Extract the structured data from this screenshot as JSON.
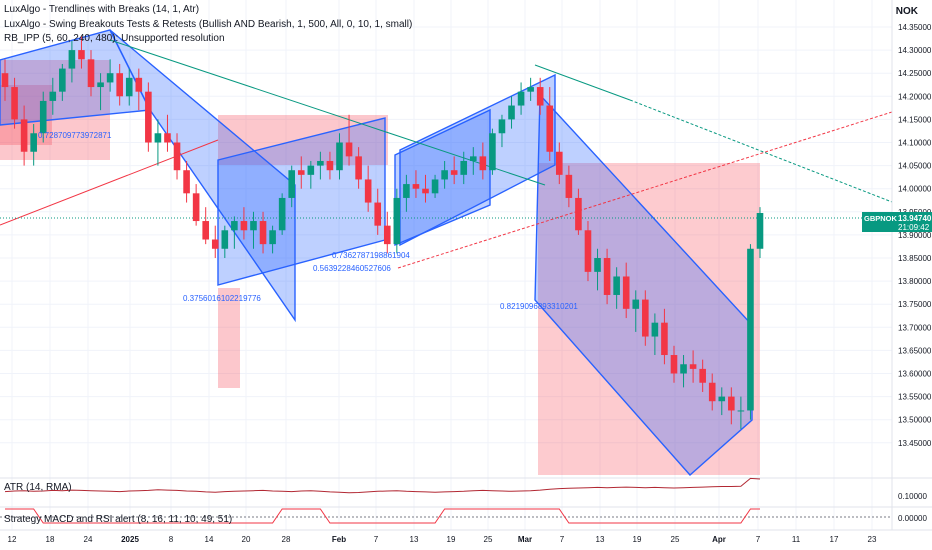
{
  "indicators": [
    "LuxAlgo - Trendlines with Breaks (14, 1, Atr)",
    "LuxAlgo - Swing Breakouts Tests & Retests (Bullish AND Bearish, 1, 500, All, 0, 10, 1, small)",
    "RB_IPP (5, 60, 240, 480): Unsupported resolution"
  ],
  "currency": "NOK",
  "symbol": "GBPNOK",
  "last_price": "13.94740",
  "countdown": "21:09:42",
  "atr_label": "ATR (14, RMA)",
  "atr_axis": [
    "0.10000",
    "0.00000"
  ],
  "strategy_label": "Strategy MACD and RSI alert (8, 16, 11, 10, 49, 51)",
  "fib_labels": [
    "0.728709773972871",
    "0.3756016102219776",
    "0.5639228460527606",
    "0.7362787198861904",
    "0.8219096893310201"
  ],
  "colors": {
    "up": "#089981",
    "down": "#f23645",
    "channel_blue": "#2962ff",
    "zone_red": "#f7525f",
    "atr_line": "#b22833",
    "price_tag": "#089981"
  },
  "chart_data": {
    "type": "candlestick",
    "x_ticks": [
      "12",
      "18",
      "24",
      "2025",
      "8",
      "14",
      "20",
      "28",
      "Feb",
      "7",
      "13",
      "19",
      "25",
      "Mar",
      "7",
      "13",
      "19",
      "25",
      "Apr",
      "7",
      "11",
      "17",
      "23"
    ],
    "y_ticks": [
      "14.35000",
      "14.30000",
      "14.25000",
      "14.20000",
      "14.15000",
      "14.10000",
      "14.05000",
      "14.00000",
      "13.95000",
      "13.90000",
      "13.85000",
      "13.80000",
      "13.75000",
      "13.70000",
      "13.65000",
      "13.60000",
      "13.55000",
      "13.50000",
      "13.45000"
    ],
    "ylim": [
      13.415,
      14.38
    ],
    "candles": [
      [
        14.25,
        14.28,
        14.19,
        14.22
      ],
      [
        14.22,
        14.24,
        14.13,
        14.15
      ],
      [
        14.15,
        14.18,
        14.05,
        14.08
      ],
      [
        14.08,
        14.14,
        14.05,
        14.12
      ],
      [
        14.12,
        14.21,
        14.1,
        14.19
      ],
      [
        14.19,
        14.24,
        14.16,
        14.21
      ],
      [
        14.21,
        14.27,
        14.19,
        14.26
      ],
      [
        14.26,
        14.32,
        14.23,
        14.3
      ],
      [
        14.3,
        14.33,
        14.26,
        14.28
      ],
      [
        14.28,
        14.3,
        14.2,
        14.22
      ],
      [
        14.22,
        14.25,
        14.17,
        14.23
      ],
      [
        14.23,
        14.28,
        14.21,
        14.25
      ],
      [
        14.25,
        14.27,
        14.18,
        14.2
      ],
      [
        14.2,
        14.26,
        14.18,
        14.24
      ],
      [
        14.24,
        14.26,
        14.17,
        14.21
      ],
      [
        14.21,
        14.23,
        14.08,
        14.1
      ],
      [
        14.1,
        14.15,
        14.05,
        14.12
      ],
      [
        14.12,
        14.16,
        14.08,
        14.1
      ],
      [
        14.1,
        14.12,
        14.02,
        14.04
      ],
      [
        14.04,
        14.06,
        13.97,
        13.99
      ],
      [
        13.99,
        14.01,
        13.92,
        13.93
      ],
      [
        13.93,
        13.96,
        13.88,
        13.89
      ],
      [
        13.89,
        13.92,
        13.85,
        13.87
      ],
      [
        13.87,
        13.92,
        13.85,
        13.91
      ],
      [
        13.91,
        13.94,
        13.87,
        13.93
      ],
      [
        13.93,
        13.96,
        13.89,
        13.91
      ],
      [
        13.91,
        13.95,
        13.87,
        13.93
      ],
      [
        13.93,
        13.95,
        13.86,
        13.88
      ],
      [
        13.88,
        13.92,
        13.86,
        13.91
      ],
      [
        13.91,
        13.99,
        13.9,
        13.98
      ],
      [
        13.98,
        14.05,
        13.96,
        14.04
      ],
      [
        14.04,
        14.07,
        14.0,
        14.03
      ],
      [
        14.03,
        14.06,
        14.0,
        14.05
      ],
      [
        14.05,
        14.08,
        14.02,
        14.06
      ],
      [
        14.06,
        14.08,
        14.02,
        14.04
      ],
      [
        14.04,
        14.12,
        14.02,
        14.1
      ],
      [
        14.1,
        14.16,
        14.05,
        14.07
      ],
      [
        14.07,
        14.09,
        14.0,
        14.02
      ],
      [
        14.02,
        14.05,
        13.95,
        13.97
      ],
      [
        13.97,
        14.0,
        13.9,
        13.92
      ],
      [
        13.92,
        13.95,
        13.86,
        13.88
      ],
      [
        13.88,
        14.0,
        13.86,
        13.98
      ],
      [
        13.98,
        14.03,
        13.95,
        14.01
      ],
      [
        14.01,
        14.04,
        13.98,
        14.0
      ],
      [
        14.0,
        14.03,
        13.97,
        13.99
      ],
      [
        13.99,
        14.03,
        13.98,
        14.02
      ],
      [
        14.02,
        14.06,
        14.0,
        14.04
      ],
      [
        14.04,
        14.07,
        14.01,
        14.03
      ],
      [
        14.03,
        14.08,
        14.01,
        14.06
      ],
      [
        14.06,
        14.09,
        14.03,
        14.07
      ],
      [
        14.07,
        14.1,
        14.02,
        14.04
      ],
      [
        14.04,
        14.13,
        14.03,
        14.12
      ],
      [
        14.12,
        14.16,
        14.09,
        14.15
      ],
      [
        14.15,
        14.2,
        14.13,
        14.18
      ],
      [
        14.18,
        14.23,
        14.16,
        14.21
      ],
      [
        14.21,
        14.24,
        14.19,
        14.22
      ],
      [
        14.22,
        14.24,
        14.16,
        14.18
      ],
      [
        14.18,
        14.22,
        14.06,
        14.08
      ],
      [
        14.08,
        14.1,
        14.01,
        14.03
      ],
      [
        14.03,
        14.05,
        13.96,
        13.98
      ],
      [
        13.98,
        14.0,
        13.9,
        13.91
      ],
      [
        13.91,
        13.93,
        13.8,
        13.82
      ],
      [
        13.82,
        13.87,
        13.78,
        13.85
      ],
      [
        13.85,
        13.87,
        13.75,
        13.77
      ],
      [
        13.77,
        13.83,
        13.74,
        13.81
      ],
      [
        13.81,
        13.84,
        13.72,
        13.74
      ],
      [
        13.74,
        13.78,
        13.69,
        13.76
      ],
      [
        13.76,
        13.78,
        13.66,
        13.68
      ],
      [
        13.68,
        13.73,
        13.64,
        13.71
      ],
      [
        13.71,
        13.74,
        13.62,
        13.64
      ],
      [
        13.64,
        13.66,
        13.58,
        13.6
      ],
      [
        13.6,
        13.64,
        13.57,
        13.62
      ],
      [
        13.62,
        13.65,
        13.58,
        13.61
      ],
      [
        13.61,
        13.63,
        13.56,
        13.58
      ],
      [
        13.58,
        13.6,
        13.52,
        13.54
      ],
      [
        13.54,
        13.57,
        13.51,
        13.55
      ],
      [
        13.55,
        13.57,
        13.49,
        13.52
      ],
      [
        13.52,
        13.55,
        13.48,
        13.52
      ],
      [
        13.52,
        13.88,
        13.5,
        13.87
      ],
      [
        13.87,
        13.96,
        13.85,
        13.9474
      ]
    ],
    "atr_values": [
      0.028,
      0.03,
      0.031,
      0.029,
      0.03,
      0.032,
      0.031,
      0.033,
      0.032,
      0.031,
      0.03,
      0.029,
      0.028,
      0.03,
      0.031,
      0.032,
      0.034,
      0.033,
      0.032,
      0.03,
      0.029,
      0.027,
      0.026,
      0.028,
      0.029,
      0.03,
      0.031,
      0.032,
      0.03,
      0.029,
      0.028,
      0.03,
      0.031,
      0.029,
      0.027,
      0.026,
      0.024,
      0.025,
      0.027,
      0.029,
      0.03,
      0.031,
      0.029,
      0.028,
      0.027,
      0.026,
      0.027,
      0.028,
      0.029,
      0.031,
      0.032,
      0.031,
      0.03,
      0.029,
      0.03,
      0.031,
      0.033,
      0.036,
      0.038,
      0.039,
      0.04,
      0.041,
      0.042,
      0.041,
      0.042,
      0.043,
      0.042,
      0.041,
      0.042,
      0.041,
      0.04,
      0.041,
      0.042,
      0.043,
      0.044,
      0.045,
      0.045,
      0.046,
      0.072,
      0.07
    ],
    "strategy_values": [
      1,
      1,
      1,
      1,
      0,
      0,
      0,
      0,
      0,
      0,
      0,
      0,
      0,
      0,
      0,
      0,
      0,
      0,
      0,
      0,
      0,
      0,
      0,
      0,
      0,
      0,
      0,
      0,
      0,
      1,
      1,
      1,
      1,
      1,
      0,
      0,
      0,
      0,
      0,
      0,
      0,
      0,
      0,
      0,
      0,
      0,
      1,
      1,
      1,
      1,
      1,
      1,
      1,
      1,
      1,
      1,
      1,
      1,
      1,
      0,
      0,
      0,
      0,
      0,
      0,
      0,
      0,
      0,
      0,
      0,
      0,
      0,
      0,
      0,
      0,
      0,
      0,
      0,
      1,
      1
    ]
  }
}
